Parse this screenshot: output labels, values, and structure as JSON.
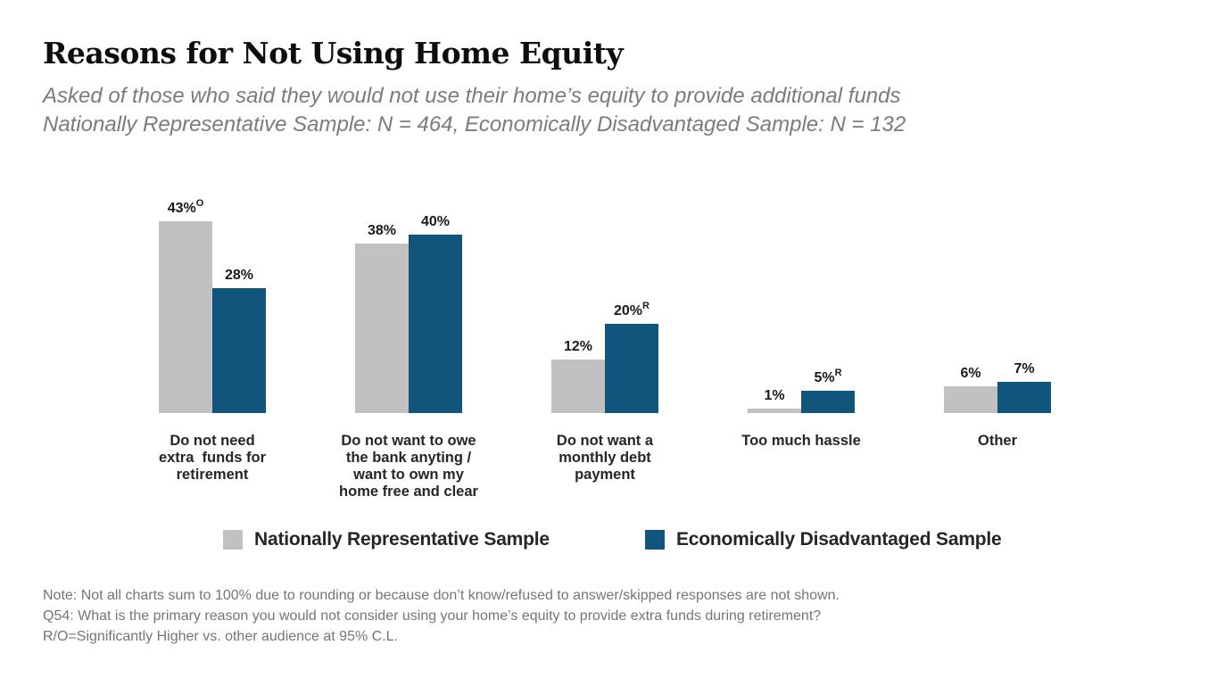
{
  "title": "Reasons for Not Using Home Equity",
  "subtitle_line1": "Asked of those who said they would not use their home’s equity to provide additional funds",
  "subtitle_line2": "Nationally Representative Sample: N = 464, Economically Disadvantaged Sample: N = 132",
  "chart_data": {
    "type": "bar",
    "categories": [
      "Do not need\nextra  funds for\nretirement",
      "Do not want to owe\nthe bank anyting /\nwant to own my\nhome free and clear",
      "Do not want a\nmonthly debt\npayment",
      "Too much hassle",
      "Other"
    ],
    "series": [
      {
        "name": "Nationally Representative Sample",
        "color": "#c1c1c1",
        "values": [
          43,
          38,
          12,
          1,
          6
        ],
        "superscripts": [
          "O",
          "",
          "",
          "",
          ""
        ]
      },
      {
        "name": "Economically Disadvantaged Sample",
        "color": "#11557c",
        "values": [
          28,
          40,
          20,
          5,
          7
        ],
        "superscripts": [
          "",
          "",
          "R",
          "R",
          ""
        ]
      }
    ],
    "value_suffix": "%",
    "ylim": [
      0,
      50
    ],
    "grid": false,
    "axes_hidden": true,
    "legend_position": "bottom"
  },
  "footnotes": [
    "Note: Not all charts sum to 100% due to rounding or because don’t know/refused to answer/skipped responses are not shown.",
    "Q54: What is the primary reason you would not consider using your home’s equity to provide extra funds during retirement?",
    "R/O=Significantly Higher vs. other audience at 95% C.L."
  ]
}
